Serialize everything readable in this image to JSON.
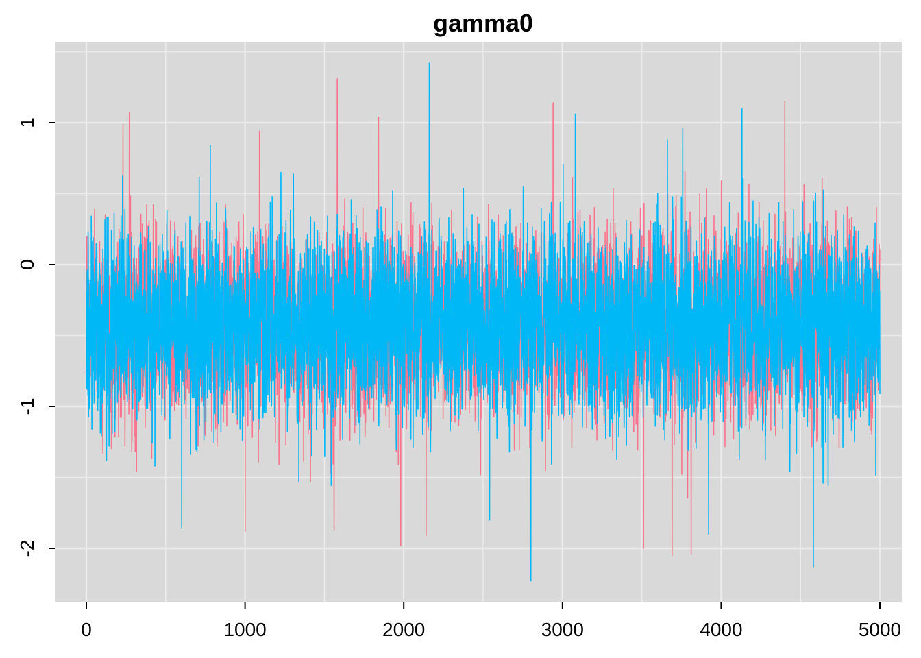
{
  "chart_data": {
    "type": "line",
    "title": "gamma0",
    "xlabel": "",
    "ylabel": "",
    "xlim": [
      0,
      5000
    ],
    "ylim": [
      -2.3,
      1.5
    ],
    "x_ticks": [
      0,
      1000,
      2000,
      3000,
      4000,
      5000
    ],
    "x_tick_labels": [
      "0",
      "1000",
      "2000",
      "3000",
      "4000",
      "5000"
    ],
    "y_ticks": [
      -2,
      -1,
      0,
      1
    ],
    "y_tick_labels": [
      "-2",
      "-1",
      "0",
      "1"
    ],
    "grid": true,
    "panel_background": "#d9d9d9",
    "grid_color": "#ebebeb",
    "legend": "none",
    "n_iterations": 5000,
    "series": [
      {
        "color": "#f8768d",
        "summary": {
          "mean": -0.42,
          "sd": 0.33,
          "min": -2.05,
          "max": 1.31
        },
        "peaks": [
          {
            "x": 1580,
            "y": 1.31
          },
          {
            "x": 4400,
            "y": 1.15
          },
          {
            "x": 2940,
            "y": 1.14
          },
          {
            "x": 270,
            "y": 1.07
          },
          {
            "x": 1840,
            "y": 1.04
          },
          {
            "x": 230,
            "y": 0.99
          },
          {
            "x": 1090,
            "y": 0.94
          }
        ],
        "troughs": [
          {
            "x": 3690,
            "y": -2.05
          },
          {
            "x": 3810,
            "y": -2.04
          },
          {
            "x": 3510,
            "y": -2.0
          },
          {
            "x": 1980,
            "y": -1.98
          },
          {
            "x": 2140,
            "y": -1.91
          },
          {
            "x": 1000,
            "y": -1.88
          },
          {
            "x": 1560,
            "y": -1.87
          }
        ]
      },
      {
        "color": "#00b8f5",
        "summary": {
          "mean": -0.42,
          "sd": 0.33,
          "min": -2.23,
          "max": 1.42
        },
        "peaks": [
          {
            "x": 2160,
            "y": 1.42
          },
          {
            "x": 4130,
            "y": 1.1
          },
          {
            "x": 3080,
            "y": 1.06
          },
          {
            "x": 3660,
            "y": 0.88
          },
          {
            "x": 780,
            "y": 0.84
          }
        ],
        "troughs": [
          {
            "x": 2800,
            "y": -2.23
          },
          {
            "x": 4580,
            "y": -2.13
          },
          {
            "x": 3920,
            "y": -1.9
          },
          {
            "x": 600,
            "y": -1.86
          },
          {
            "x": 2540,
            "y": -1.8
          }
        ]
      }
    ]
  }
}
